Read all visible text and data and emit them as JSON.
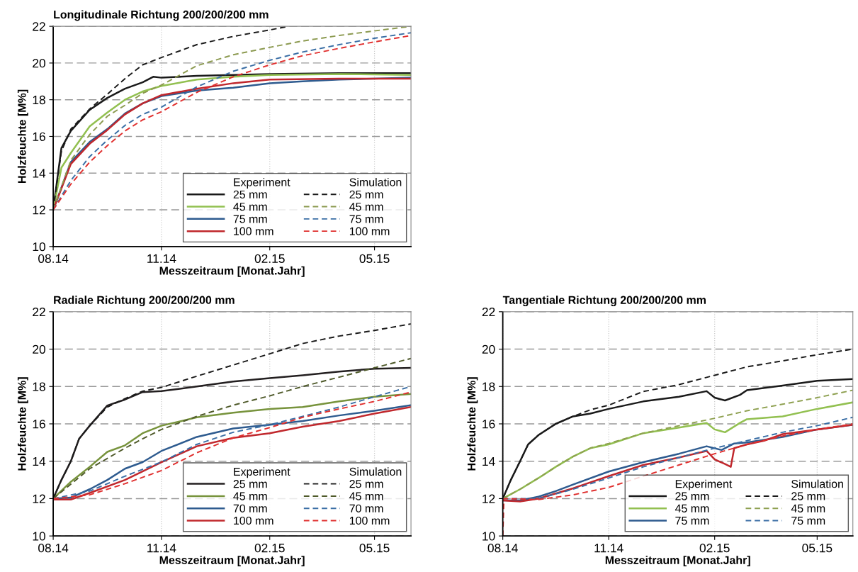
{
  "chart_data": [
    {
      "type": "line",
      "title": "Longitudinale Richtung 200/200/200 mm",
      "xlabel": "Messzeitraum [Monat.Jahr]",
      "ylabel": "Holzfeuchte [M%]",
      "xlim": [
        "2014-08-01",
        "2015-06-01"
      ],
      "ylim": [
        10,
        22
      ],
      "xticks": [
        {
          "value": "2014-08-01",
          "label": "08.14"
        },
        {
          "value": "2014-11-01",
          "label": "11.14"
        },
        {
          "value": "2015-02-01",
          "label": "02.15"
        },
        {
          "value": "2015-05-01",
          "label": "05.15"
        }
      ],
      "yticks": [
        10,
        12,
        14,
        16,
        18,
        20,
        22
      ],
      "grid": true,
      "legend": "bottom right",
      "annotations": [
        "Experiment",
        "Simulation"
      ],
      "series": [
        {
          "name": "25 mm",
          "color": "#1a1a1a",
          "line_style": "solid",
          "x": [
            "2014-08-01",
            "2014-08-08",
            "2014-08-16",
            "2014-09-01",
            "2014-09-16",
            "2014-10-01",
            "2014-10-16",
            "2014-10-25",
            "2014-11-01",
            "2014-12-01",
            "2015-02-01",
            "2015-04-01",
            "2015-06-01"
          ],
          "values": [
            12,
            15.37,
            16.3,
            17.45,
            18.1,
            18.6,
            18.95,
            19.25,
            19.2,
            19.3,
            19.4,
            19.45,
            19.45
          ]
        },
        {
          "name": "45 mm",
          "color": "#92c050",
          "line_style": "solid",
          "x": [
            "2014-08-01",
            "2014-08-08",
            "2014-08-16",
            "2014-09-01",
            "2014-09-16",
            "2014-10-01",
            "2014-10-16",
            "2014-11-01",
            "2014-12-01",
            "2015-01-01",
            "2015-02-01",
            "2015-04-01",
            "2015-06-01"
          ],
          "values": [
            12,
            14.3,
            15.1,
            16.55,
            17.3,
            18.0,
            18.45,
            18.75,
            19.1,
            19.25,
            19.35,
            19.4,
            19.35
          ]
        },
        {
          "name": "75 mm",
          "color": "#2e5b8f",
          "line_style": "solid",
          "x": [
            "2014-08-01",
            "2014-08-16",
            "2014-09-01",
            "2014-09-16",
            "2014-10-01",
            "2014-10-16",
            "2014-11-01",
            "2014-12-01",
            "2015-01-01",
            "2015-02-01",
            "2015-03-01",
            "2015-04-01",
            "2015-06-01"
          ],
          "values": [
            12,
            14.6,
            15.7,
            16.4,
            17.25,
            17.8,
            18.2,
            18.5,
            18.65,
            18.9,
            19.0,
            19.1,
            19.2
          ]
        },
        {
          "name": "100 mm",
          "color": "#c0282d",
          "line_style": "solid",
          "x": [
            "2014-08-01",
            "2014-08-16",
            "2014-09-01",
            "2014-09-16",
            "2014-10-01",
            "2014-10-16",
            "2014-11-01",
            "2014-12-01",
            "2015-01-01",
            "2015-02-01",
            "2015-04-01",
            "2015-06-01"
          ],
          "values": [
            12,
            14.5,
            15.6,
            16.35,
            17.2,
            17.8,
            18.25,
            18.6,
            18.9,
            19.1,
            19.15,
            19.15
          ]
        },
        {
          "name": "25 mm",
          "color": "#1a1a1a",
          "line_style": "dashed",
          "x": [
            "2014-08-01",
            "2014-08-08",
            "2014-08-16",
            "2014-09-01",
            "2014-09-16",
            "2014-10-01",
            "2014-10-16",
            "2014-11-01",
            "2014-12-01",
            "2015-01-01",
            "2015-02-01",
            "2015-02-17"
          ],
          "values": [
            12,
            15.2,
            16.4,
            17.5,
            18.3,
            19.15,
            19.9,
            20.3,
            21.0,
            21.45,
            21.8,
            22
          ]
        },
        {
          "name": "45 mm",
          "color": "#8c9a50",
          "line_style": "dashed",
          "x": [
            "2014-08-01",
            "2014-08-16",
            "2014-09-01",
            "2014-09-16",
            "2014-10-01",
            "2014-10-16",
            "2014-11-01",
            "2014-12-01",
            "2015-01-01",
            "2015-02-01",
            "2015-03-01",
            "2015-04-01",
            "2015-05-01",
            "2015-06-01"
          ],
          "values": [
            12,
            14.7,
            16.1,
            17.1,
            17.7,
            18.35,
            18.8,
            19.85,
            20.45,
            20.85,
            21.2,
            21.5,
            21.75,
            22
          ]
        },
        {
          "name": "75 mm",
          "color": "#3a6ea5",
          "line_style": "dashed",
          "x": [
            "2014-08-01",
            "2014-08-16",
            "2014-09-01",
            "2014-09-16",
            "2014-10-01",
            "2014-10-16",
            "2014-11-01",
            "2014-12-01",
            "2015-01-01",
            "2015-02-01",
            "2015-03-01",
            "2015-04-01",
            "2015-05-01",
            "2015-06-01"
          ],
          "values": [
            12,
            13.6,
            14.9,
            15.8,
            16.6,
            17.2,
            17.6,
            18.7,
            19.55,
            20.15,
            20.6,
            21.0,
            21.35,
            21.65
          ]
        },
        {
          "name": "100 mm",
          "color": "#e0302f",
          "line_style": "dashed",
          "x": [
            "2014-08-01",
            "2014-08-16",
            "2014-09-01",
            "2014-09-16",
            "2014-10-01",
            "2014-10-16",
            "2014-11-01",
            "2014-12-01",
            "2015-01-01",
            "2015-02-01",
            "2015-03-01",
            "2015-04-01",
            "2015-05-01",
            "2015-06-01"
          ],
          "values": [
            12,
            13.4,
            14.6,
            15.5,
            16.3,
            16.9,
            17.35,
            18.4,
            19.25,
            19.9,
            20.4,
            20.8,
            21.15,
            21.5
          ]
        }
      ]
    },
    {
      "type": "line",
      "title": "Radiale Richtung 200/200/200 mm",
      "xlabel": "Messzeitraum [Monat.Jahr]",
      "ylabel": "Holzfeuchte [M%]",
      "xlim": [
        "2014-08-01",
        "2015-06-01"
      ],
      "ylim": [
        10,
        22
      ],
      "xticks": [
        {
          "value": "2014-08-01",
          "label": "08.14"
        },
        {
          "value": "2014-11-01",
          "label": "11.14"
        },
        {
          "value": "2015-02-01",
          "label": "02.15"
        },
        {
          "value": "2015-05-01",
          "label": "05.15"
        }
      ],
      "yticks": [
        10,
        12,
        14,
        16,
        18,
        20,
        22
      ],
      "grid": true,
      "legend": "bottom right",
      "annotations": [
        "Experiment",
        "Simulation"
      ],
      "series": [
        {
          "name": "25 mm",
          "color": "#231f20",
          "line_style": "solid",
          "x": [
            "2014-08-01",
            "2014-08-08",
            "2014-08-16",
            "2014-08-23",
            "2014-09-01",
            "2014-09-16",
            "2014-10-01",
            "2014-10-16",
            "2014-11-01",
            "2014-12-01",
            "2015-01-01",
            "2015-02-01",
            "2015-03-01",
            "2015-04-01",
            "2015-05-01",
            "2015-06-01"
          ],
          "values": [
            12,
            13.0,
            14.0,
            15.2,
            15.9,
            16.98,
            17.3,
            17.7,
            17.75,
            18.0,
            18.27,
            18.45,
            18.6,
            18.8,
            18.95,
            19.0
          ]
        },
        {
          "name": "45 mm",
          "color": "#77933c",
          "line_style": "solid",
          "x": [
            "2014-08-01",
            "2014-08-16",
            "2014-09-01",
            "2014-09-16",
            "2014-10-01",
            "2014-10-16",
            "2014-11-01",
            "2014-12-01",
            "2015-01-01",
            "2015-02-01",
            "2015-03-01",
            "2015-04-01",
            "2015-05-01",
            "2015-06-01"
          ],
          "values": [
            12,
            12.9,
            13.7,
            14.5,
            14.85,
            15.5,
            15.9,
            16.35,
            16.6,
            16.8,
            16.9,
            17.2,
            17.45,
            17.6
          ]
        },
        {
          "name": "70 mm",
          "color": "#2e5b8f",
          "line_style": "solid",
          "x": [
            "2014-08-01",
            "2014-08-16",
            "2014-09-01",
            "2014-09-16",
            "2014-10-01",
            "2014-10-16",
            "2014-11-01",
            "2014-12-01",
            "2015-01-01",
            "2015-02-01",
            "2015-03-01",
            "2015-04-01",
            "2015-05-01",
            "2015-06-01"
          ],
          "values": [
            12,
            12.05,
            12.5,
            13.0,
            13.6,
            13.95,
            14.55,
            15.3,
            15.75,
            15.95,
            16.15,
            16.45,
            16.7,
            17.0
          ]
        },
        {
          "name": "100 mm",
          "color": "#c0282d",
          "line_style": "solid",
          "x": [
            "2014-08-01",
            "2014-08-16",
            "2014-09-01",
            "2014-10-01",
            "2014-11-01",
            "2014-12-01",
            "2015-01-01",
            "2015-02-01",
            "2015-03-01",
            "2015-04-01",
            "2015-05-01",
            "2015-06-01"
          ],
          "values": [
            11.95,
            11.95,
            12.3,
            13.0,
            13.95,
            14.8,
            15.25,
            15.5,
            15.85,
            16.15,
            16.55,
            16.9
          ]
        },
        {
          "name": "25 mm",
          "color": "#1a1a1a",
          "line_style": "dashed",
          "x": [
            "2014-08-01",
            "2014-08-08",
            "2014-08-16",
            "2014-08-23",
            "2014-09-01",
            "2014-09-16",
            "2014-10-01",
            "2014-10-16",
            "2014-11-01",
            "2014-12-01",
            "2015-01-01",
            "2015-02-01",
            "2015-03-01",
            "2015-04-01",
            "2015-05-01",
            "2015-06-01"
          ],
          "values": [
            12,
            13.0,
            14.0,
            15.2,
            15.9,
            16.9,
            17.35,
            17.75,
            17.95,
            18.55,
            19.15,
            19.75,
            20.3,
            20.7,
            21.0,
            21.35
          ]
        },
        {
          "name": "45 mm",
          "color": "#4f5a2a",
          "line_style": "dashed",
          "x": [
            "2014-08-01",
            "2014-09-01",
            "2014-10-01",
            "2014-10-16",
            "2014-11-01",
            "2014-12-01",
            "2015-01-01",
            "2015-02-01",
            "2015-03-01",
            "2015-04-01",
            "2015-05-01",
            "2015-06-01"
          ],
          "values": [
            12,
            13.6,
            14.7,
            15.2,
            15.7,
            16.4,
            17.0,
            17.5,
            18.0,
            18.5,
            19.0,
            19.5
          ]
        },
        {
          "name": "70 mm",
          "color": "#3a6ea5",
          "line_style": "dashed",
          "x": [
            "2014-08-01",
            "2014-09-01",
            "2014-10-01",
            "2014-11-01",
            "2014-12-01",
            "2015-01-01",
            "2015-02-01",
            "2015-03-01",
            "2015-04-01",
            "2015-05-01",
            "2015-06-01"
          ],
          "values": [
            12,
            12.4,
            13.2,
            13.96,
            14.9,
            15.55,
            15.95,
            16.4,
            16.9,
            17.45,
            18.0
          ]
        },
        {
          "name": "100 mm",
          "color": "#e0302f",
          "line_style": "dashed",
          "x": [
            "2014-08-01",
            "2014-09-01",
            "2014-10-01",
            "2014-11-01",
            "2014-12-01",
            "2015-01-01",
            "2015-02-01",
            "2015-03-01",
            "2015-04-01",
            "2015-05-01",
            "2015-06-01"
          ],
          "values": [
            12,
            12.2,
            12.8,
            13.5,
            14.45,
            15.25,
            15.8,
            16.35,
            16.8,
            17.2,
            17.7
          ]
        }
      ]
    },
    {
      "type": "line",
      "title": "Tangentiale Richtung 200/200/200 mm",
      "xlabel": "Messzeitraum [Monat.Jahr]",
      "ylabel": "Holzfeuchte [M%]",
      "xlim": [
        "2014-08-01",
        "2015-06-01"
      ],
      "ylim": [
        10,
        22
      ],
      "xticks": [
        {
          "value": "2014-08-01",
          "label": "08.14"
        },
        {
          "value": "2014-11-01",
          "label": "11.14"
        },
        {
          "value": "2015-02-01",
          "label": "02.15"
        },
        {
          "value": "2015-05-01",
          "label": "05.15"
        }
      ],
      "yticks": [
        10,
        12,
        14,
        16,
        18,
        20,
        22
      ],
      "grid": true,
      "legend": "bottom right",
      "annotations": [
        "Experiment",
        "Simulation"
      ],
      "series": [
        {
          "name": "25 mm",
          "color": "#1a1a1a",
          "line_style": "solid",
          "x": [
            "2014-08-01",
            "2014-08-08",
            "2014-08-16",
            "2014-08-23",
            "2014-09-01",
            "2014-09-16",
            "2014-10-01",
            "2014-10-16",
            "2014-11-01",
            "2014-12-01",
            "2015-01-01",
            "2015-01-25",
            "2015-02-01",
            "2015-02-10",
            "2015-02-23",
            "2015-03-01",
            "2015-04-01",
            "2015-05-01",
            "2015-06-01"
          ],
          "values": [
            12,
            13.0,
            14.0,
            14.9,
            15.4,
            16.0,
            16.4,
            16.55,
            16.8,
            17.2,
            17.45,
            17.75,
            17.4,
            17.25,
            17.55,
            17.8,
            18.05,
            18.3,
            18.4
          ]
        },
        {
          "name": "45 mm",
          "color": "#92c050",
          "line_style": "solid",
          "x": [
            "2014-08-01",
            "2014-08-16",
            "2014-09-01",
            "2014-09-16",
            "2014-10-01",
            "2014-10-16",
            "2014-11-01",
            "2014-12-01",
            "2015-01-01",
            "2015-01-25",
            "2015-02-01",
            "2015-02-10",
            "2015-02-23",
            "2015-03-01",
            "2015-04-01",
            "2015-05-01",
            "2015-06-01"
          ],
          "values": [
            12,
            12.5,
            13.1,
            13.7,
            14.25,
            14.7,
            14.9,
            15.5,
            15.8,
            16.05,
            15.7,
            15.55,
            16.05,
            16.25,
            16.4,
            16.8,
            17.15
          ]
        },
        {
          "name": "75 mm",
          "color": "#2e5b8f",
          "line_style": "solid",
          "x": [
            "2014-08-01",
            "2014-08-16",
            "2014-09-01",
            "2014-09-16",
            "2014-10-01",
            "2014-11-01",
            "2014-12-01",
            "2015-01-01",
            "2015-01-25",
            "2015-02-07",
            "2015-02-18",
            "2015-03-01",
            "2015-04-01",
            "2015-05-01",
            "2015-06-01"
          ],
          "values": [
            11.9,
            11.9,
            12.1,
            12.4,
            12.75,
            13.45,
            13.95,
            14.4,
            14.8,
            14.6,
            14.95,
            15.0,
            15.3,
            15.7,
            15.95
          ]
        },
        {
          "color": "#c0282d",
          "line_style": "solid",
          "x": [
            "2014-08-01",
            "2014-08-16",
            "2014-09-01",
            "2014-10-01",
            "2014-11-01",
            "2014-12-01",
            "2015-01-01",
            "2015-01-25",
            "2015-02-01",
            "2015-02-10",
            "2015-02-15",
            "2015-02-18",
            "2015-03-01",
            "2015-03-16",
            "2015-04-01",
            "2015-05-01",
            "2015-06-01"
          ],
          "values": [
            11.9,
            11.85,
            12.0,
            12.55,
            13.2,
            13.8,
            14.2,
            14.55,
            14.1,
            13.85,
            13.7,
            14.7,
            14.9,
            15.1,
            15.45,
            15.7,
            15.95
          ]
        },
        {
          "name": "25 mm",
          "color": "#1a1a1a",
          "line_style": "dashed",
          "x": [
            "2014-08-01",
            "2014-08-08",
            "2014-08-16",
            "2014-08-23",
            "2014-09-01",
            "2014-09-16",
            "2014-10-01",
            "2014-10-16",
            "2014-11-01",
            "2014-12-01",
            "2015-01-01",
            "2015-02-01",
            "2015-03-01",
            "2015-04-01",
            "2015-05-01",
            "2015-06-01"
          ],
          "values": [
            12,
            13.0,
            14.0,
            14.9,
            15.4,
            16.0,
            16.4,
            16.75,
            17.0,
            17.73,
            18.1,
            18.6,
            19.05,
            19.37,
            19.7,
            20.0
          ]
        },
        {
          "name": "45 mm",
          "color": "#8ea050",
          "line_style": "dashed",
          "x": [
            "2014-08-01",
            "2014-08-16",
            "2014-09-01",
            "2014-09-16",
            "2014-10-01",
            "2014-10-16",
            "2014-11-01",
            "2014-12-01",
            "2015-01-01",
            "2015-02-01",
            "2015-03-01",
            "2015-04-01",
            "2015-05-01",
            "2015-06-01"
          ],
          "values": [
            12,
            12.5,
            13.1,
            13.7,
            14.25,
            14.7,
            14.95,
            15.5,
            15.9,
            16.3,
            16.7,
            17.05,
            17.4,
            17.8
          ]
        },
        {
          "name": "75 mm",
          "color": "#3a6ea5",
          "line_style": "dashed",
          "x": [
            "2014-08-01",
            "2014-09-01",
            "2014-10-01",
            "2014-11-01",
            "2014-12-01",
            "2015-01-01",
            "2015-02-01",
            "2015-03-01",
            "2015-04-01",
            "2015-05-01",
            "2015-06-01"
          ],
          "values": [
            12,
            12.0,
            12.5,
            13.1,
            13.7,
            14.2,
            14.7,
            15.1,
            15.55,
            15.9,
            16.35
          ]
        },
        {
          "color": "#e0302f",
          "line_style": "dashed",
          "x": [
            "2014-08-01",
            "2014-08-02",
            "2014-09-01",
            "2014-10-01",
            "2014-11-01",
            "2014-12-01",
            "2015-01-01",
            "2015-02-01",
            "2015-03-01",
            "2015-04-01",
            "2015-05-01",
            "2015-06-01"
          ],
          "values": [
            10,
            12.0,
            11.95,
            12.2,
            12.6,
            13.2,
            13.8,
            14.4,
            14.9,
            15.35,
            15.7,
            16.0
          ]
        }
      ]
    }
  ]
}
